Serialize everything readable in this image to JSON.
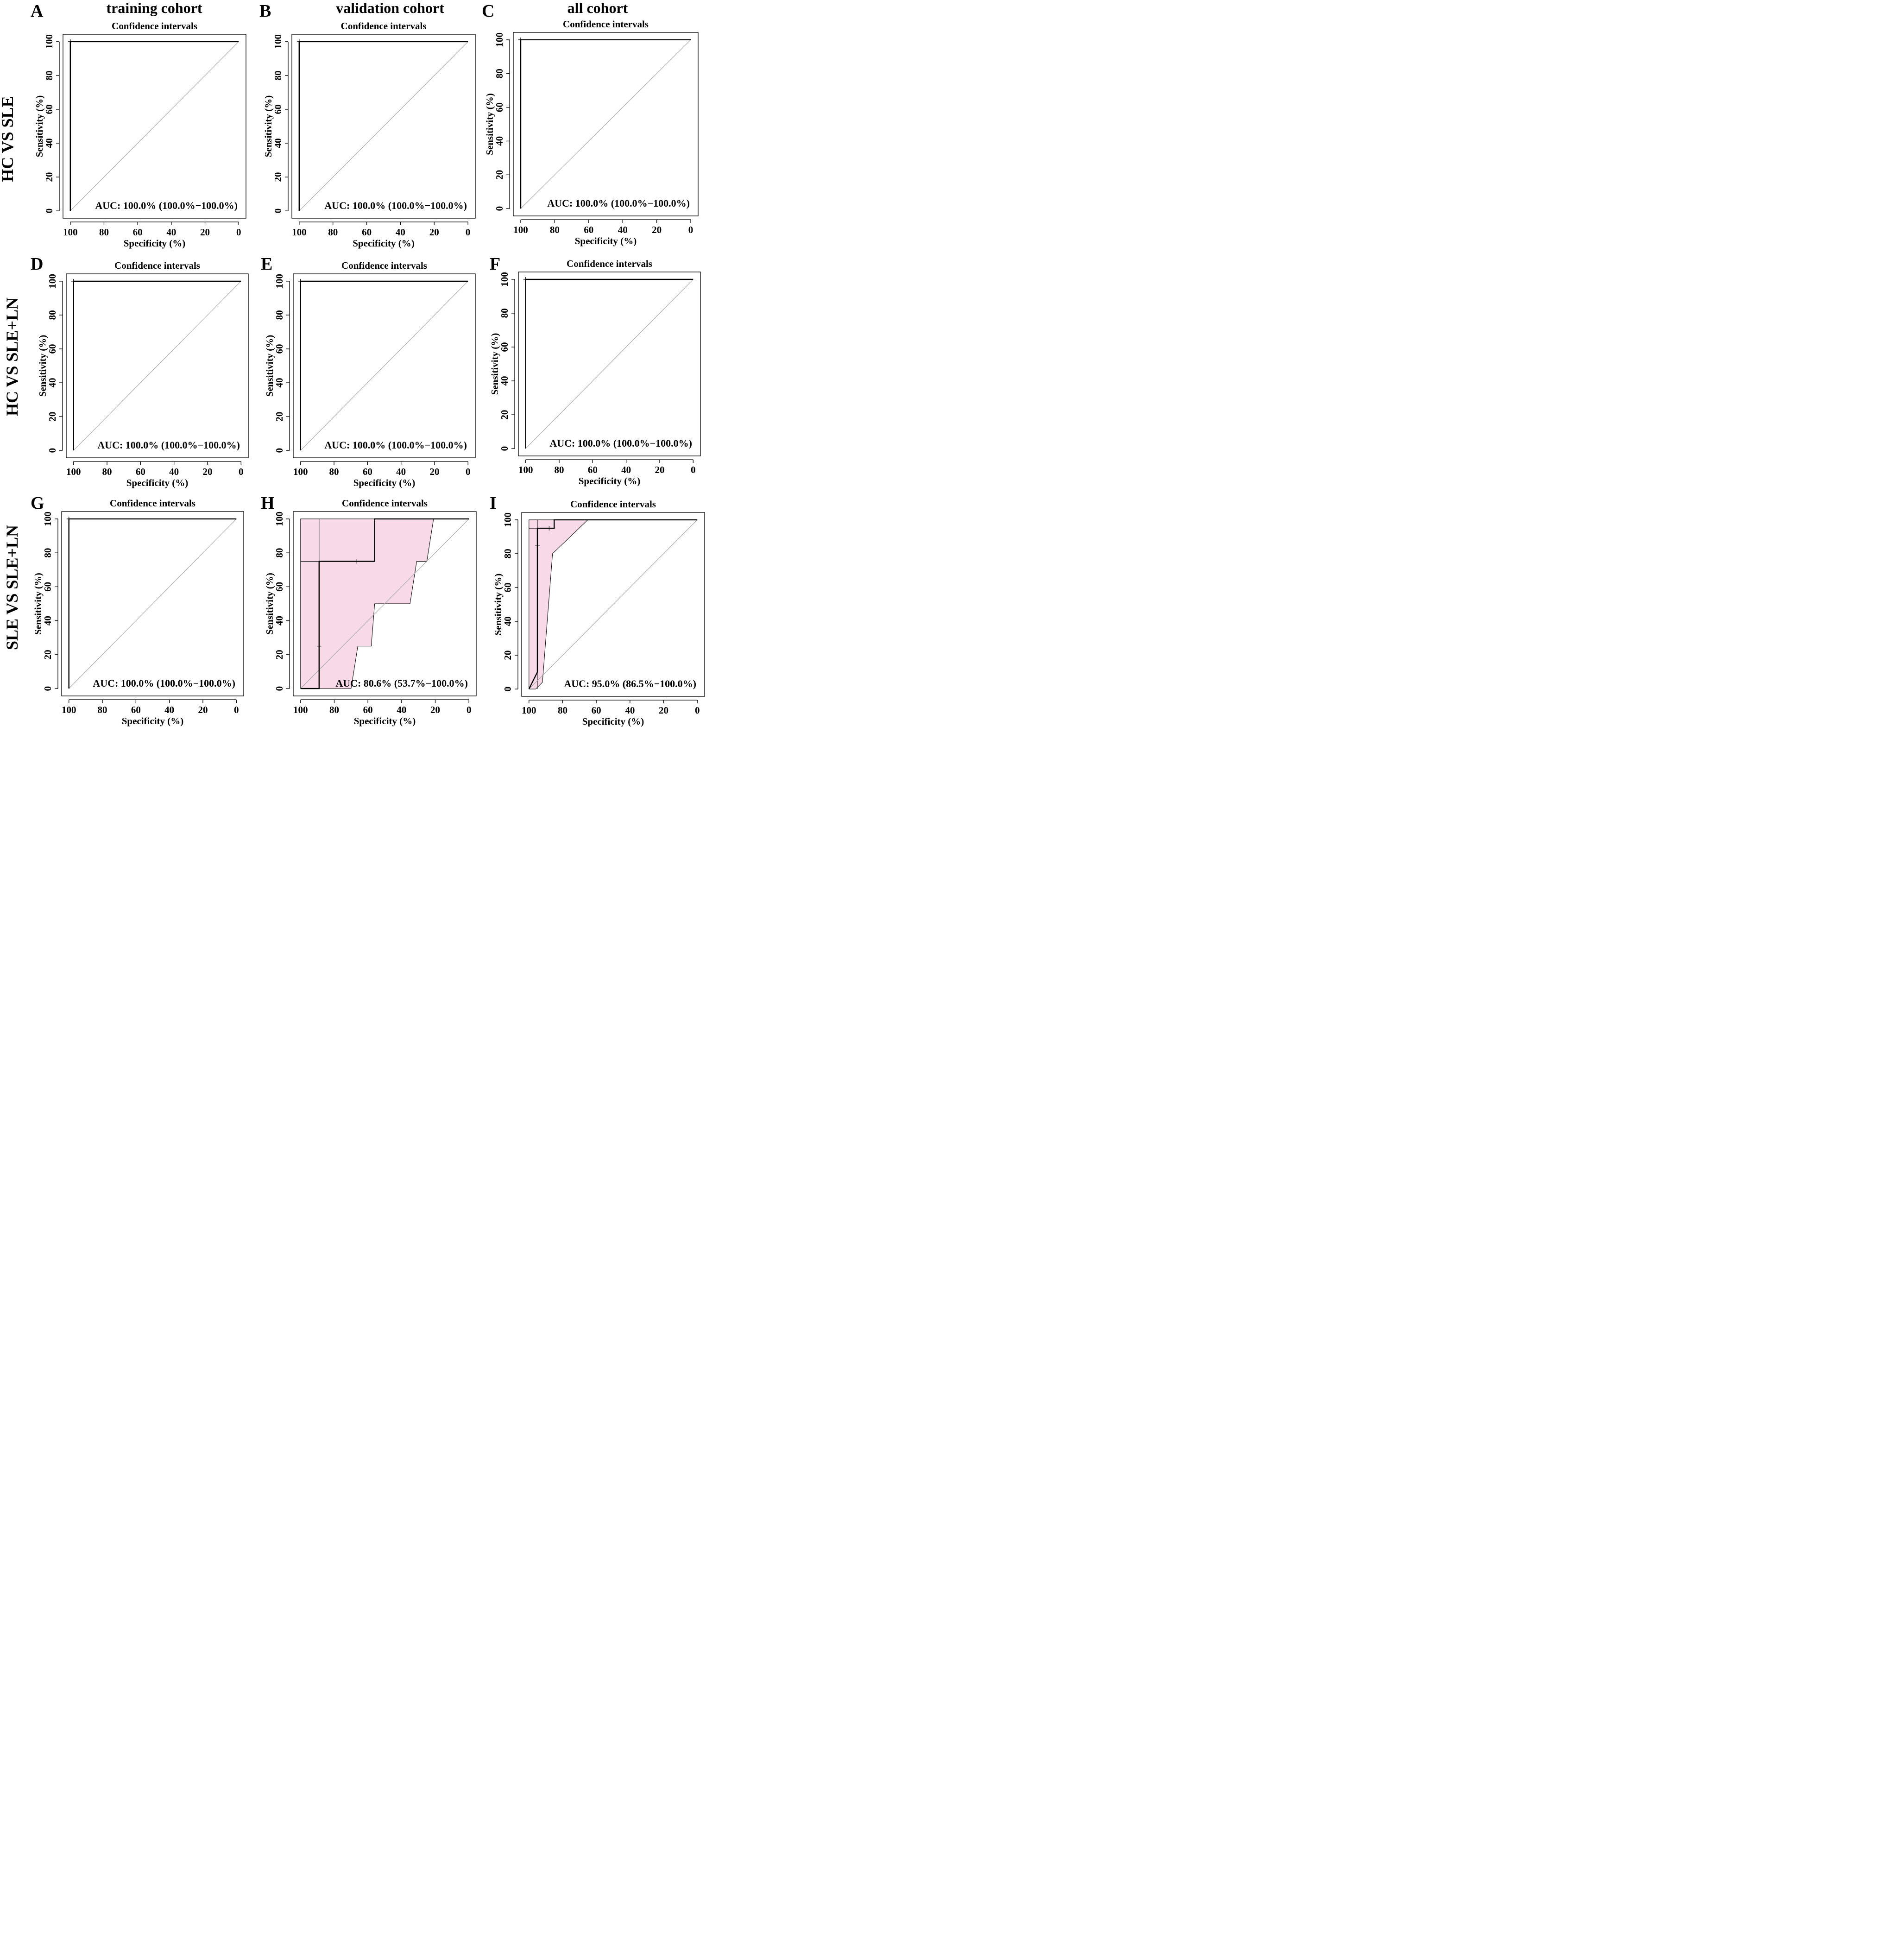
{
  "column_titles": [
    "training cohort",
    "validation cohort",
    "all cohort"
  ],
  "row_titles": [
    "HC VS SLE",
    "HC VS SLE+LN",
    "SLE VS SLE+LN"
  ],
  "colors": {
    "ci_fill": "#f7d9e8",
    "curve": "#000000",
    "diagonal": "#a9a9a9",
    "text": "#000000"
  },
  "chart_data": [
    {
      "panel": "A",
      "type": "line",
      "title": "Confidence intervals",
      "xlabel": "Specificity (%)",
      "ylabel": "Sensitivity (%)",
      "x_ticks": [
        100,
        80,
        60,
        40,
        20,
        0
      ],
      "y_ticks": [
        0,
        20,
        40,
        60,
        80,
        100
      ],
      "xlim": [
        100,
        0
      ],
      "ylim": [
        0,
        100
      ],
      "auc_text": "AUC: 100.0% (100.0%−100.0%)",
      "roc": [
        [
          100,
          0
        ],
        [
          100,
          100
        ],
        [
          0,
          100
        ]
      ],
      "markers": [
        [
          100,
          100
        ]
      ],
      "ci_band": null
    },
    {
      "panel": "B",
      "type": "line",
      "title": "Confidence intervals",
      "xlabel": "Specificity (%)",
      "ylabel": "Sensitivity (%)",
      "x_ticks": [
        100,
        80,
        60,
        40,
        20,
        0
      ],
      "y_ticks": [
        0,
        20,
        40,
        60,
        80,
        100
      ],
      "xlim": [
        100,
        0
      ],
      "ylim": [
        0,
        100
      ],
      "auc_text": "AUC: 100.0% (100.0%−100.0%)",
      "roc": [
        [
          100,
          0
        ],
        [
          100,
          100
        ],
        [
          0,
          100
        ]
      ],
      "markers": [
        [
          100,
          100
        ]
      ],
      "ci_band": null
    },
    {
      "panel": "C",
      "type": "line",
      "title": "Confidence intervals",
      "xlabel": "Specificity (%)",
      "ylabel": "Sensitivity (%)",
      "x_ticks": [
        100,
        80,
        60,
        40,
        20,
        0
      ],
      "y_ticks": [
        0,
        20,
        40,
        60,
        80,
        100
      ],
      "xlim": [
        100,
        0
      ],
      "ylim": [
        0,
        100
      ],
      "auc_text": "AUC: 100.0% (100.0%−100.0%)",
      "roc": [
        [
          100,
          0
        ],
        [
          100,
          100
        ],
        [
          0,
          100
        ]
      ],
      "markers": [
        [
          100,
          100
        ]
      ],
      "ci_band": null
    },
    {
      "panel": "D",
      "type": "line",
      "title": "Confidence intervals",
      "xlabel": "Specificity (%)",
      "ylabel": "Sensitivity (%)",
      "x_ticks": [
        100,
        80,
        60,
        40,
        20,
        0
      ],
      "y_ticks": [
        0,
        20,
        40,
        60,
        80,
        100
      ],
      "xlim": [
        100,
        0
      ],
      "ylim": [
        0,
        100
      ],
      "auc_text": "AUC: 100.0% (100.0%−100.0%)",
      "roc": [
        [
          100,
          0
        ],
        [
          100,
          100
        ],
        [
          0,
          100
        ]
      ],
      "markers": [
        [
          100,
          100
        ]
      ],
      "ci_band": null
    },
    {
      "panel": "E",
      "type": "line",
      "title": "Confidence intervals",
      "xlabel": "Specificity (%)",
      "ylabel": "Sensitivity (%)",
      "x_ticks": [
        100,
        80,
        60,
        40,
        20,
        0
      ],
      "y_ticks": [
        0,
        20,
        40,
        60,
        80,
        100
      ],
      "xlim": [
        100,
        0
      ],
      "ylim": [
        0,
        100
      ],
      "auc_text": "AUC: 100.0% (100.0%−100.0%)",
      "roc": [
        [
          100,
          0
        ],
        [
          100,
          100
        ],
        [
          0,
          100
        ]
      ],
      "markers": [
        [
          100,
          100
        ]
      ],
      "ci_band": null
    },
    {
      "panel": "F",
      "type": "line",
      "title": "Confidence intervals",
      "xlabel": "Specificity (%)",
      "ylabel": "Sensitivity (%)",
      "x_ticks": [
        100,
        80,
        60,
        40,
        20,
        0
      ],
      "y_ticks": [
        0,
        20,
        40,
        60,
        80,
        100
      ],
      "xlim": [
        100,
        0
      ],
      "ylim": [
        0,
        100
      ],
      "auc_text": "AUC: 100.0% (100.0%−100.0%)",
      "roc": [
        [
          100,
          0
        ],
        [
          100,
          100
        ],
        [
          0,
          100
        ]
      ],
      "markers": [
        [
          100,
          100
        ]
      ],
      "ci_band": null
    },
    {
      "panel": "G",
      "type": "line",
      "title": "Confidence intervals",
      "xlabel": "Specificity (%)",
      "ylabel": "Sensitivity (%)",
      "x_ticks": [
        100,
        80,
        60,
        40,
        20,
        0
      ],
      "y_ticks": [
        0,
        20,
        40,
        60,
        80,
        100
      ],
      "xlim": [
        100,
        0
      ],
      "ylim": [
        0,
        100
      ],
      "auc_text": "AUC: 100.0% (100.0%−100.0%)",
      "roc": [
        [
          100,
          0
        ],
        [
          100,
          100
        ],
        [
          0,
          100
        ]
      ],
      "markers": [
        [
          100,
          100
        ]
      ],
      "ci_band": null
    },
    {
      "panel": "H",
      "type": "line",
      "title": "Confidence intervals",
      "xlabel": "Specificity (%)",
      "ylabel": "Sensitivity (%)",
      "x_ticks": [
        100,
        80,
        60,
        40,
        20,
        0
      ],
      "y_ticks": [
        0,
        20,
        40,
        60,
        80,
        100
      ],
      "xlim": [
        100,
        0
      ],
      "ylim": [
        0,
        100
      ],
      "auc_text": "AUC: 80.6% (53.7%−100.0%)",
      "roc": [
        [
          100,
          0
        ],
        [
          89,
          0
        ],
        [
          89,
          75
        ],
        [
          56,
          75
        ],
        [
          56,
          100
        ],
        [
          0,
          100
        ]
      ],
      "markers": [
        [
          89,
          25
        ],
        [
          67,
          75
        ]
      ],
      "ci_band": {
        "upper": [
          [
            100,
            0
          ],
          [
            100,
            100
          ],
          [
            21,
            100
          ]
        ],
        "lower": [
          [
            21,
            100
          ],
          [
            25,
            75
          ],
          [
            31,
            75
          ],
          [
            35,
            50
          ],
          [
            56,
            50
          ],
          [
            58,
            25
          ],
          [
            63,
            25
          ],
          [
            66,
            25
          ],
          [
            70,
            0
          ],
          [
            100,
            0
          ]
        ]
      },
      "ci_steps": [
        [
          [
            100,
            75
          ],
          [
            89,
            75
          ]
        ],
        [
          [
            89,
            0
          ],
          [
            89,
            100
          ]
        ]
      ]
    },
    {
      "panel": "I",
      "type": "line",
      "title": "Confidence intervals",
      "xlabel": "Specificity (%)",
      "ylabel": "Sensitivity (%)",
      "x_ticks": [
        100,
        80,
        60,
        40,
        20,
        0
      ],
      "y_ticks": [
        0,
        20,
        40,
        60,
        80,
        100
      ],
      "xlim": [
        100,
        0
      ],
      "ylim": [
        0,
        100
      ],
      "auc_text": "AUC: 95.0% (86.5%−100.0%)",
      "roc": [
        [
          100,
          0
        ],
        [
          95,
          10
        ],
        [
          95,
          95
        ],
        [
          85,
          95
        ],
        [
          85,
          100
        ],
        [
          0,
          100
        ]
      ],
      "markers": [
        [
          95,
          85
        ],
        [
          88,
          95
        ]
      ],
      "ci_band": {
        "upper": [
          [
            100,
            0
          ],
          [
            100,
            100
          ],
          [
            65,
            100
          ]
        ],
        "lower": [
          [
            65,
            100
          ],
          [
            86,
            80
          ],
          [
            92,
            4
          ],
          [
            96,
            0
          ],
          [
            100,
            0
          ]
        ]
      },
      "ci_steps": [
        [
          [
            100,
            95
          ],
          [
            85,
            95
          ]
        ],
        [
          [
            95,
            0
          ],
          [
            95,
            100
          ]
        ]
      ]
    }
  ]
}
